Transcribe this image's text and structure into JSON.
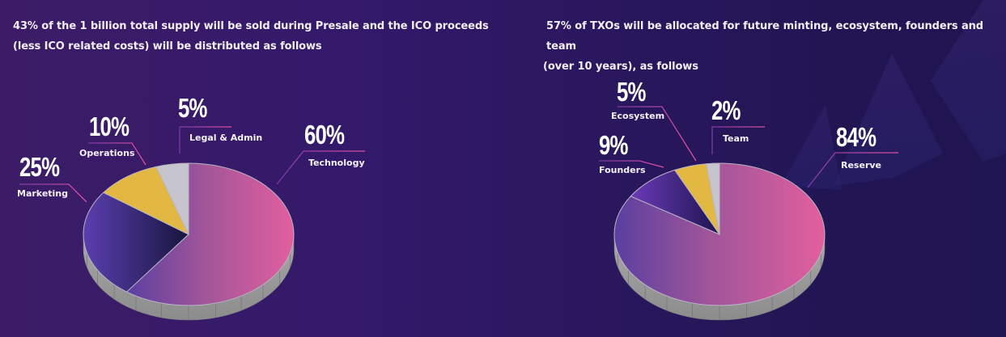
{
  "colors": {
    "bg_left": "#3c1c67",
    "bg_right": "#1f1550",
    "technology": "#d45fa0",
    "marketing": "#2c2564",
    "operations": "#e2b843",
    "legal": "#c6c4cc",
    "reserve": "#cf5e9f",
    "founders": "#4a2a8a",
    "ecosystem": "#e2b843",
    "team": "#c6c4cc",
    "leader": "#c9489a",
    "side": "#9a9a9a"
  },
  "chart_data": [
    {
      "type": "pie",
      "title": "43% of the 1 billion total supply will be sold during Presale and the ICO proceeds (less ICO related costs) will be distributed as follows",
      "title_lines": [
        "43% of the 1 billion total supply will be sold during Presale and the ICO proceeds",
        "(less ICO related costs) will be distributed as follows"
      ],
      "slices": [
        {
          "label": "Technology",
          "value": 60,
          "value_label": "60%"
        },
        {
          "label": "Marketing",
          "value": 25,
          "value_label": "25%"
        },
        {
          "label": "Operations",
          "value": 10,
          "value_label": "10%"
        },
        {
          "label": "Legal & Admin",
          "value": 5,
          "value_label": "5%"
        }
      ]
    },
    {
      "type": "pie",
      "title": "57% of TXOs will be allocated for future minting, ecosystem, founders and team (over 10 years), as follows",
      "title_lines": [
        "57% of TXOs will be allocated for future minting, ecosystem, founders and team",
        "(over 10 years), as follows"
      ],
      "slices": [
        {
          "label": "Reserve",
          "value": 84,
          "value_label": "84%"
        },
        {
          "label": "Founders",
          "value": 9,
          "value_label": "9%"
        },
        {
          "label": "Ecosystem",
          "value": 5,
          "value_label": "5%"
        },
        {
          "label": "Team",
          "value": 2,
          "value_label": "2%"
        }
      ]
    }
  ]
}
